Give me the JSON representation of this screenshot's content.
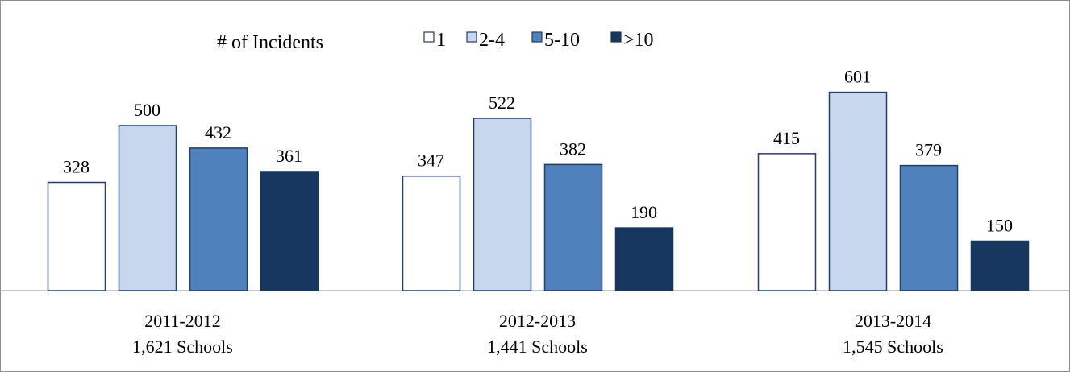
{
  "chart_data": {
    "type": "bar",
    "legend_title": "# of Incidents",
    "legend_position": "top",
    "grid": false,
    "ylim": [
      0,
      650
    ],
    "categories": [
      {
        "year": "2011-2012",
        "schools": "1,621 Schools"
      },
      {
        "year": "2012-2013",
        "schools": "1,441 Schools"
      },
      {
        "year": "2013-2014",
        "schools": "1,545 Schools"
      }
    ],
    "series": [
      {
        "name": "1",
        "color": "#ffffff",
        "stroke": "#1f3d6e",
        "values": [
          328,
          347,
          415
        ]
      },
      {
        "name": "2-4",
        "color": "#c6d7ee",
        "stroke": "#1f3d6e",
        "values": [
          500,
          522,
          601
        ]
      },
      {
        "name": "5-10",
        "color": "#4f81bd",
        "stroke": "#1f3d6e",
        "values": [
          432,
          382,
          379
        ]
      },
      {
        "name": ">10",
        "color": "#17375e",
        "stroke": "#17375e",
        "values": [
          361,
          190,
          150
        ]
      }
    ]
  }
}
